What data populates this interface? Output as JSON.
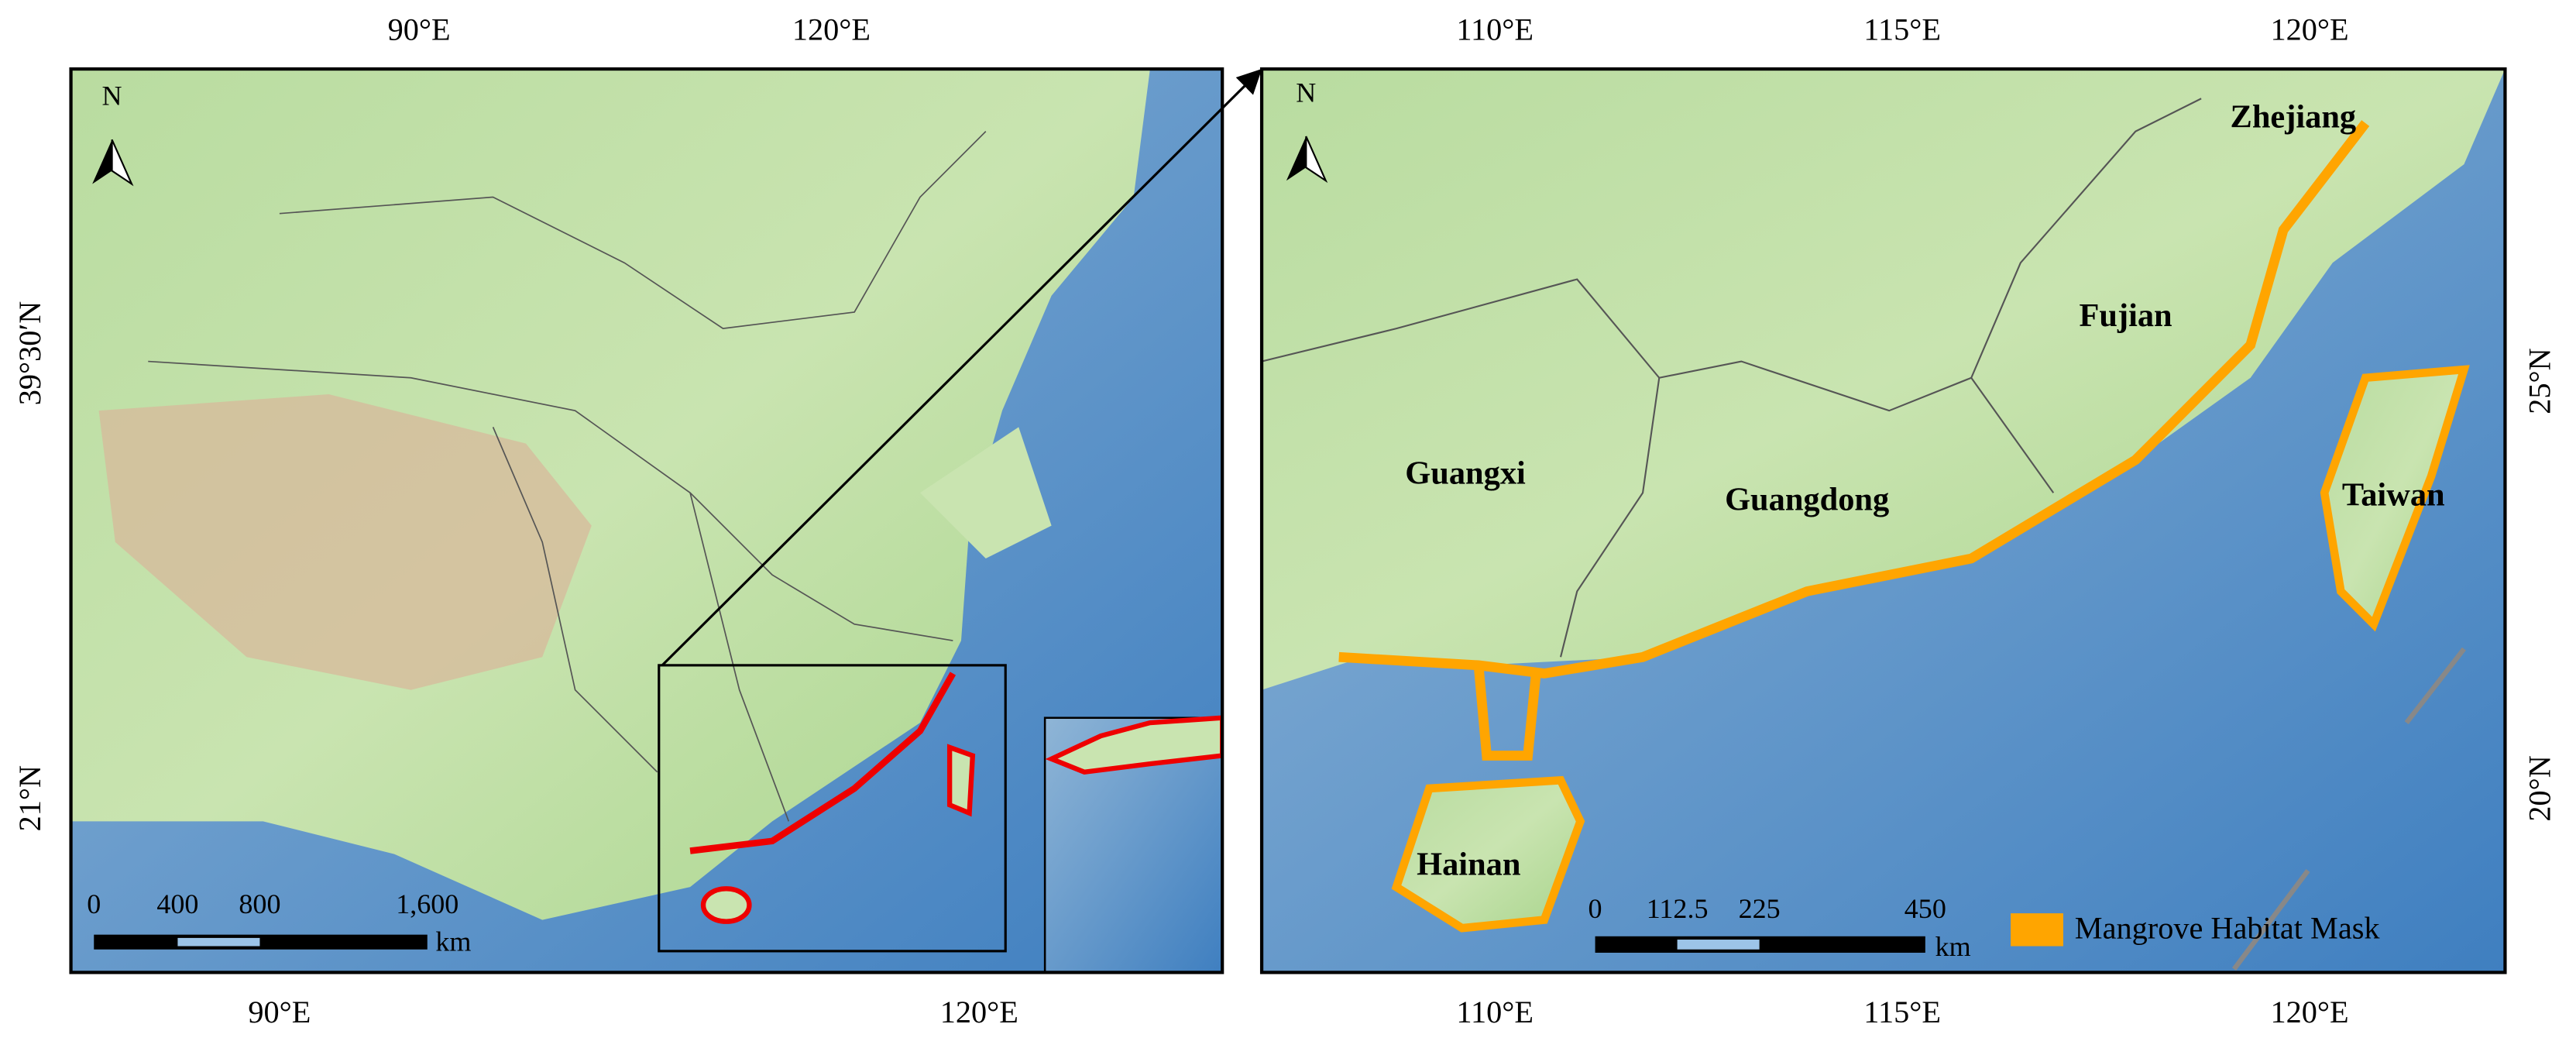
{
  "left_map": {
    "north_label": "N",
    "top_ticks": [
      "90°E",
      "120°E"
    ],
    "bottom_ticks": [
      "90°E",
      "120°E"
    ],
    "left_ticks": [
      "39°30′N",
      "21°N"
    ],
    "scale_bar": {
      "labels": [
        "0",
        "400",
        "800",
        "1,600"
      ],
      "unit": "km"
    }
  },
  "right_map": {
    "north_label": "N",
    "top_ticks": [
      "110°E",
      "115°E",
      "120°E"
    ],
    "bottom_ticks": [
      "110°E",
      "115°E",
      "120°E"
    ],
    "right_ticks": [
      "25°N",
      "20°N"
    ],
    "regions": [
      "Zhejiang",
      "Fujian",
      "Guangxi",
      "Guangdong",
      "Taiwan",
      "Hainan"
    ],
    "scale_bar": {
      "labels": [
        "0",
        "112.5",
        "225",
        "450"
      ],
      "unit": "km"
    },
    "legend": "Mangrove Habitat Mask"
  }
}
